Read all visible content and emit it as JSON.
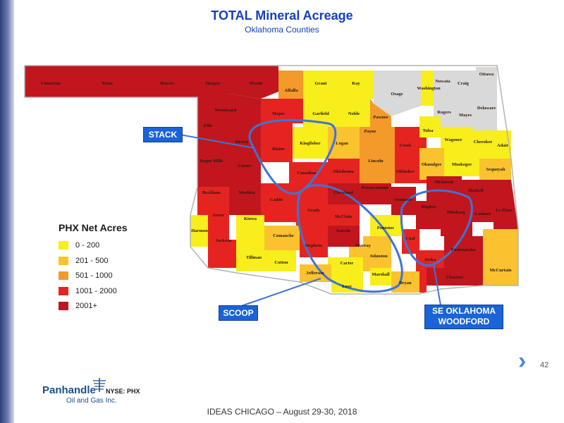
{
  "header": {
    "title": "TOTAL Mineral Acreage",
    "subtitle": "Oklahoma Counties"
  },
  "colors": {
    "c0_200": "#f7ee1c",
    "c201_500": "#f9c22e",
    "c501_1000": "#f39a2b",
    "c1001_2000": "#e52421",
    "c2001": "#c1161e",
    "gray": "#d9d9d9",
    "play_outline": "#3d74d6"
  },
  "legend": {
    "title": "PHX Net Acres",
    "items": [
      {
        "label": "0 - 200",
        "color": "#f7ee1c"
      },
      {
        "label": "201 - 500",
        "color": "#f9c22e"
      },
      {
        "label": "501 - 1000",
        "color": "#f39a2b"
      },
      {
        "label": "1001 - 2000",
        "color": "#e52421"
      },
      {
        "label": "2001+",
        "color": "#c1161e"
      }
    ]
  },
  "plays": {
    "stack": "STACK",
    "scoop": "SCOOP",
    "woodford_line1": "SE OKLAHOMA",
    "woodford_line2": "WOODFORD"
  },
  "counties": {
    "cimarron": "Cimarron",
    "texas": "Texas",
    "beaver": "Beaver",
    "harper": "Harper",
    "woods": "Woods",
    "alfalfa": "Alfalfa",
    "grant": "Grant",
    "kay": "Kay",
    "osage": "Osage",
    "washington": "Washington",
    "nowata": "Nowata",
    "craig": "Craig",
    "ottawa": "Ottawa",
    "rogers": "Rogers",
    "mayes": "Mayes",
    "delaware": "Delaware",
    "woodward": "Woodward",
    "major": "Major",
    "garfield": "Garfield",
    "noble": "Noble",
    "pawnee": "Pawnee",
    "ellis": "Ellis",
    "dewey": "Dewey",
    "blaine": "Blaine",
    "kingfisher": "Kingfisher",
    "logan": "Logan",
    "payne": "Payne",
    "creek": "Creek",
    "tulsa": "Tulsa",
    "wagoner": "Wagoner",
    "cherokee": "Cherokee",
    "adair": "Adair",
    "roger_mills": "Roger Mills",
    "custer": "Custer",
    "canadian": "Canadian",
    "oklahoma": "Oklahoma",
    "lincoln": "Lincoln",
    "okfuskee": "Okfuskee",
    "okmulgee": "Okmulgee",
    "muskogee": "Muskogee",
    "sequoyah": "Sequoyah",
    "beckham": "Beckham",
    "washita": "Washita",
    "caddo": "Caddo",
    "grady": "Grady",
    "cleveland": "Cleveland",
    "pottawatomie": "Pottawatomie",
    "seminole": "Seminole",
    "hughes": "Hughes",
    "mcintosh": "McIntosh",
    "haskell": "Haskell",
    "pittsburg": "Pittsburg",
    "latimer": "Latimer",
    "le_flore": "Le Flore",
    "greer": "Greer",
    "kiowa": "Kiowa",
    "harmon": "Harmon",
    "jackson": "Jackson",
    "comanche": "Comanche",
    "tillman": "Tillman",
    "cotton": "Cotton",
    "stephens": "Stephens",
    "mcclain": "McClain",
    "garvin": "Garvin",
    "pontotoc": "Pontotoc",
    "murray": "Murray",
    "carter": "Carter",
    "johnston": "Johnston",
    "jefferson": "Jefferson",
    "love": "Love",
    "marshall": "Marshall",
    "bryan": "Bryan",
    "coal": "Coal",
    "atoka": "Atoka",
    "pushmataha": "Pushmataha",
    "choctaw": "Choctaw",
    "mccurtain": "McCurtain"
  },
  "page": {
    "number": "42",
    "footer": "IDEAS CHICAGO – August 29-30, 2018"
  },
  "logo": {
    "name": "Panhandle",
    "sub": "Oil and Gas Inc.",
    "ticker": "NYSE: PHX"
  }
}
